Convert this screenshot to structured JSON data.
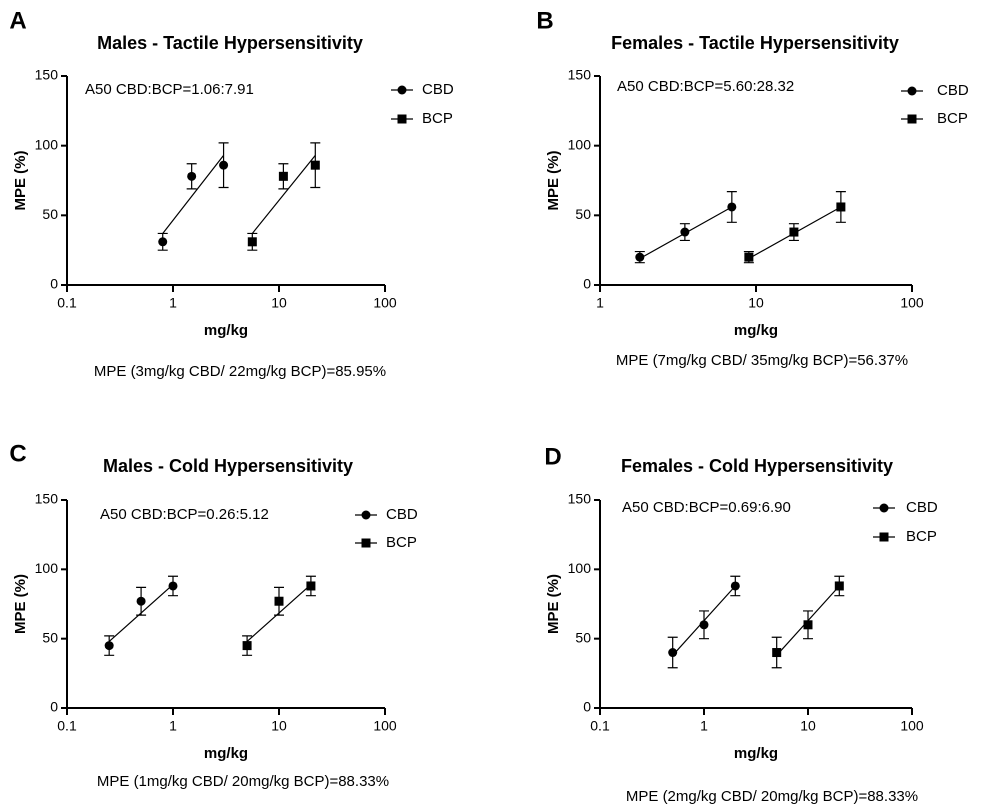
{
  "chart_data": [
    {
      "type": "scatter",
      "panel": "A",
      "title": "Males - Tactile Hypersensitivity",
      "annotation": "A50 CBD:BCP=1.06:7.91",
      "note": "MPE (3mg/kg CBD/ 22mg/kg BCP)=85.95%",
      "x_label": "mg/kg",
      "y_label": "MPE (%)",
      "log_x": true,
      "xlim": [
        0.1,
        100
      ],
      "xticks": [
        0.1,
        1,
        10,
        100
      ],
      "ylim": [
        0,
        150
      ],
      "yticks": [
        0,
        50,
        100,
        150
      ],
      "series": [
        {
          "name": "CBD",
          "marker": "circle",
          "color": "#000000",
          "x": [
            0.8,
            1.5,
            3
          ],
          "values": [
            31,
            78,
            86
          ],
          "errors": [
            6,
            9,
            16
          ],
          "fit": {
            "x": [
              0.8,
              3
            ],
            "y": [
              37,
              93
            ]
          }
        },
        {
          "name": "BCP",
          "marker": "square",
          "color": "#000000",
          "x": [
            5.6,
            11,
            22
          ],
          "values": [
            31,
            78,
            86
          ],
          "errors": [
            6,
            9,
            16
          ],
          "fit": {
            "x": [
              5.6,
              22
            ],
            "y": [
              37,
              93
            ]
          }
        }
      ]
    },
    {
      "type": "scatter",
      "panel": "B",
      "title": "Females - Tactile Hypersensitivity",
      "annotation": "A50 CBD:BCP=5.60:28.32",
      "note": "MPE (7mg/kg CBD/ 35mg/kg BCP)=56.37%",
      "x_label": "mg/kg",
      "y_label": "MPE (%)",
      "log_x": true,
      "xlim": [
        1,
        100
      ],
      "xticks": [
        1,
        10,
        100
      ],
      "ylim": [
        0,
        150
      ],
      "yticks": [
        0,
        50,
        100,
        150
      ],
      "series": [
        {
          "name": "CBD",
          "marker": "circle",
          "color": "#000000",
          "x": [
            1.8,
            3.5,
            7
          ],
          "values": [
            20,
            38,
            56
          ],
          "errors": [
            4,
            6,
            11
          ],
          "fit": {
            "x": [
              1.8,
              7
            ],
            "y": [
              19,
              56
            ]
          }
        },
        {
          "name": "BCP",
          "marker": "square",
          "color": "#000000",
          "x": [
            9,
            17.5,
            35
          ],
          "values": [
            20,
            38,
            56
          ],
          "errors": [
            4,
            6,
            11
          ],
          "fit": {
            "x": [
              9,
              35
            ],
            "y": [
              19,
              56
            ]
          }
        }
      ]
    },
    {
      "type": "scatter",
      "panel": "C",
      "title": "Males - Cold Hypersensitivity",
      "annotation": "A50 CBD:BCP=0.26:5.12",
      "note": "MPE (1mg/kg CBD/ 20mg/kg BCP)=88.33%",
      "x_label": "mg/kg",
      "y_label": "MPE (%)",
      "log_x": true,
      "xlim": [
        0.1,
        100
      ],
      "xticks": [
        0.1,
        1,
        10,
        100
      ],
      "ylim": [
        0,
        150
      ],
      "yticks": [
        0,
        50,
        100,
        150
      ],
      "series": [
        {
          "name": "CBD",
          "marker": "circle",
          "color": "#000000",
          "x": [
            0.25,
            0.5,
            1
          ],
          "values": [
            45,
            77,
            88
          ],
          "errors": [
            7,
            10,
            7
          ],
          "fit": {
            "x": [
              0.25,
              1
            ],
            "y": [
              48,
              89
            ]
          }
        },
        {
          "name": "BCP",
          "marker": "square",
          "color": "#000000",
          "x": [
            5,
            10,
            20
          ],
          "values": [
            45,
            77,
            88
          ],
          "errors": [
            7,
            10,
            7
          ],
          "fit": {
            "x": [
              5,
              20
            ],
            "y": [
              48,
              89
            ]
          }
        }
      ]
    },
    {
      "type": "scatter",
      "panel": "D",
      "title": "Females - Cold Hypersensitivity",
      "annotation": "A50 CBD:BCP=0.69:6.90",
      "note": "MPE (2mg/kg CBD/ 20mg/kg BCP)=88.33%",
      "x_label": "mg/kg",
      "y_label": "MPE (%)",
      "log_x": true,
      "xlim": [
        0.1,
        100
      ],
      "xticks": [
        0.1,
        1,
        10,
        100
      ],
      "ylim": [
        0,
        150
      ],
      "yticks": [
        0,
        50,
        100,
        150
      ],
      "series": [
        {
          "name": "CBD",
          "marker": "circle",
          "color": "#000000",
          "x": [
            0.5,
            1,
            2
          ],
          "values": [
            40,
            60,
            88
          ],
          "errors": [
            11,
            10,
            7
          ],
          "fit": {
            "x": [
              0.5,
              2
            ],
            "y": [
              38,
              88
            ]
          }
        },
        {
          "name": "BCP",
          "marker": "square",
          "color": "#000000",
          "x": [
            5,
            10,
            20
          ],
          "values": [
            40,
            60,
            88
          ],
          "errors": [
            11,
            10,
            7
          ],
          "fit": {
            "x": [
              5,
              20
            ],
            "y": [
              38,
              88
            ]
          }
        }
      ]
    }
  ]
}
